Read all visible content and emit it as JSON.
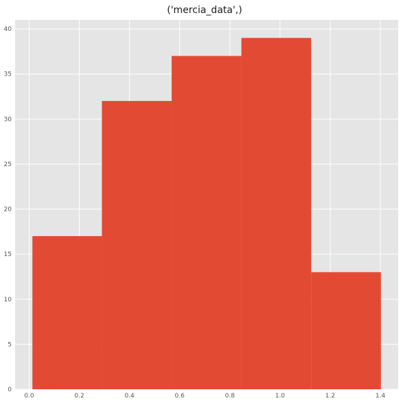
{
  "chart_data": {
    "type": "bar",
    "title": "('mercia_data',)",
    "xlabel": "",
    "ylabel": "",
    "bins": [
      {
        "start": 0.013,
        "end": 0.29,
        "count": 17
      },
      {
        "start": 0.29,
        "end": 0.568,
        "count": 32
      },
      {
        "start": 0.568,
        "end": 0.846,
        "count": 37
      },
      {
        "start": 0.846,
        "end": 1.124,
        "count": 39
      },
      {
        "start": 1.124,
        "end": 1.402,
        "count": 13
      }
    ],
    "xlim": [
      -0.056,
      1.471
    ],
    "ylim": [
      0,
      41
    ],
    "xticks": [
      0.0,
      0.2,
      0.4,
      0.6,
      0.8,
      1.0,
      1.2,
      1.4
    ],
    "xtick_labels": [
      "0.0",
      "0.2",
      "0.4",
      "0.6",
      "0.8",
      "1.0",
      "1.2",
      "1.4"
    ],
    "yticks": [
      0,
      5,
      10,
      15,
      20,
      25,
      30,
      35,
      40
    ],
    "ytick_labels": [
      "0",
      "5",
      "10",
      "15",
      "20",
      "25",
      "30",
      "35",
      "40"
    ],
    "grid": true,
    "colors": {
      "bar": "#e24a33",
      "background": "#e5e5e5",
      "grid": "#ffffff",
      "tick_text": "#555555"
    }
  }
}
